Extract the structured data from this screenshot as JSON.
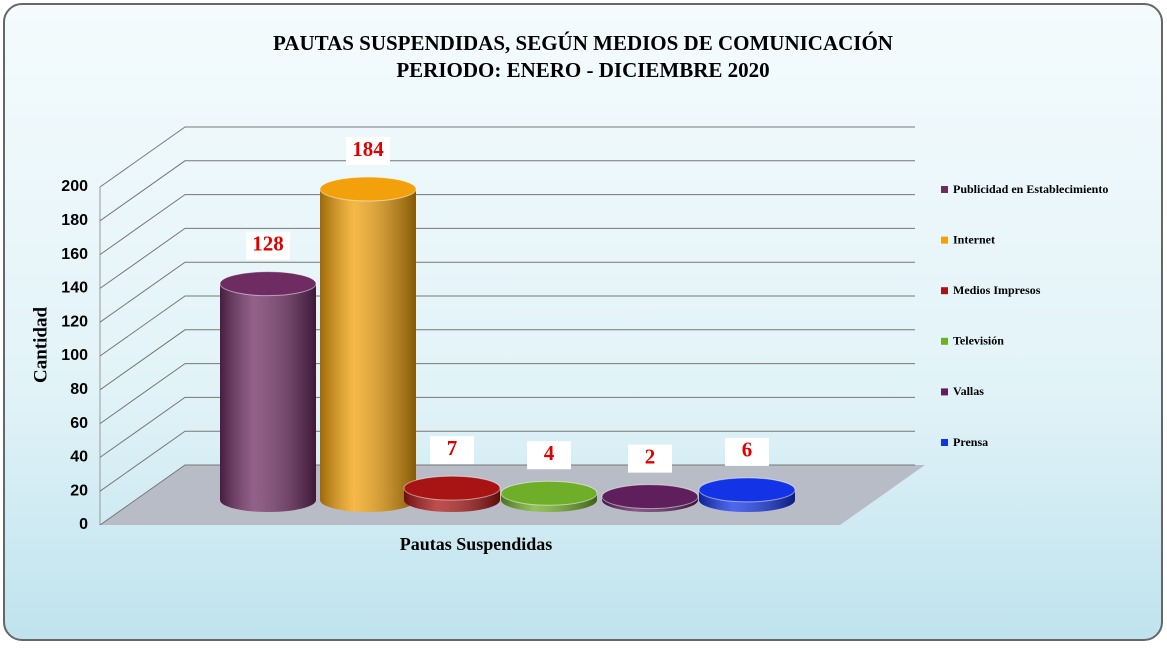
{
  "chart_data": {
    "type": "bar3d",
    "title": "PAUTAS SUSPENDIDAS, SEGÚN MEDIOS DE COMUNICACIÓN",
    "subtitle": "PERIODO:  ENERO - DICIEMBRE  2020",
    "y_label": "Cantidad",
    "categories": [
      "Pautas Suspendidas"
    ],
    "series": [
      {
        "name": "Publicidad en Establecimiento",
        "color": "#6e2c63",
        "values": [
          128
        ]
      },
      {
        "name": "Internet",
        "color": "#f2a10a",
        "values": [
          184
        ]
      },
      {
        "name": "Medios Impresos",
        "color": "#a81414",
        "values": [
          7
        ]
      },
      {
        "name": "Televisión",
        "color": "#6fae28",
        "values": [
          4
        ]
      },
      {
        "name": "Vallas",
        "color": "#5e1f5c",
        "values": [
          2
        ]
      },
      {
        "name": "Prensa",
        "color": "#1233e6",
        "values": [
          6
        ]
      }
    ],
    "ylim": [
      0,
      200
    ],
    "yticks": [
      0,
      20,
      40,
      60,
      80,
      100,
      120,
      140,
      160,
      180,
      200
    ],
    "grid": true,
    "legend": "right"
  }
}
